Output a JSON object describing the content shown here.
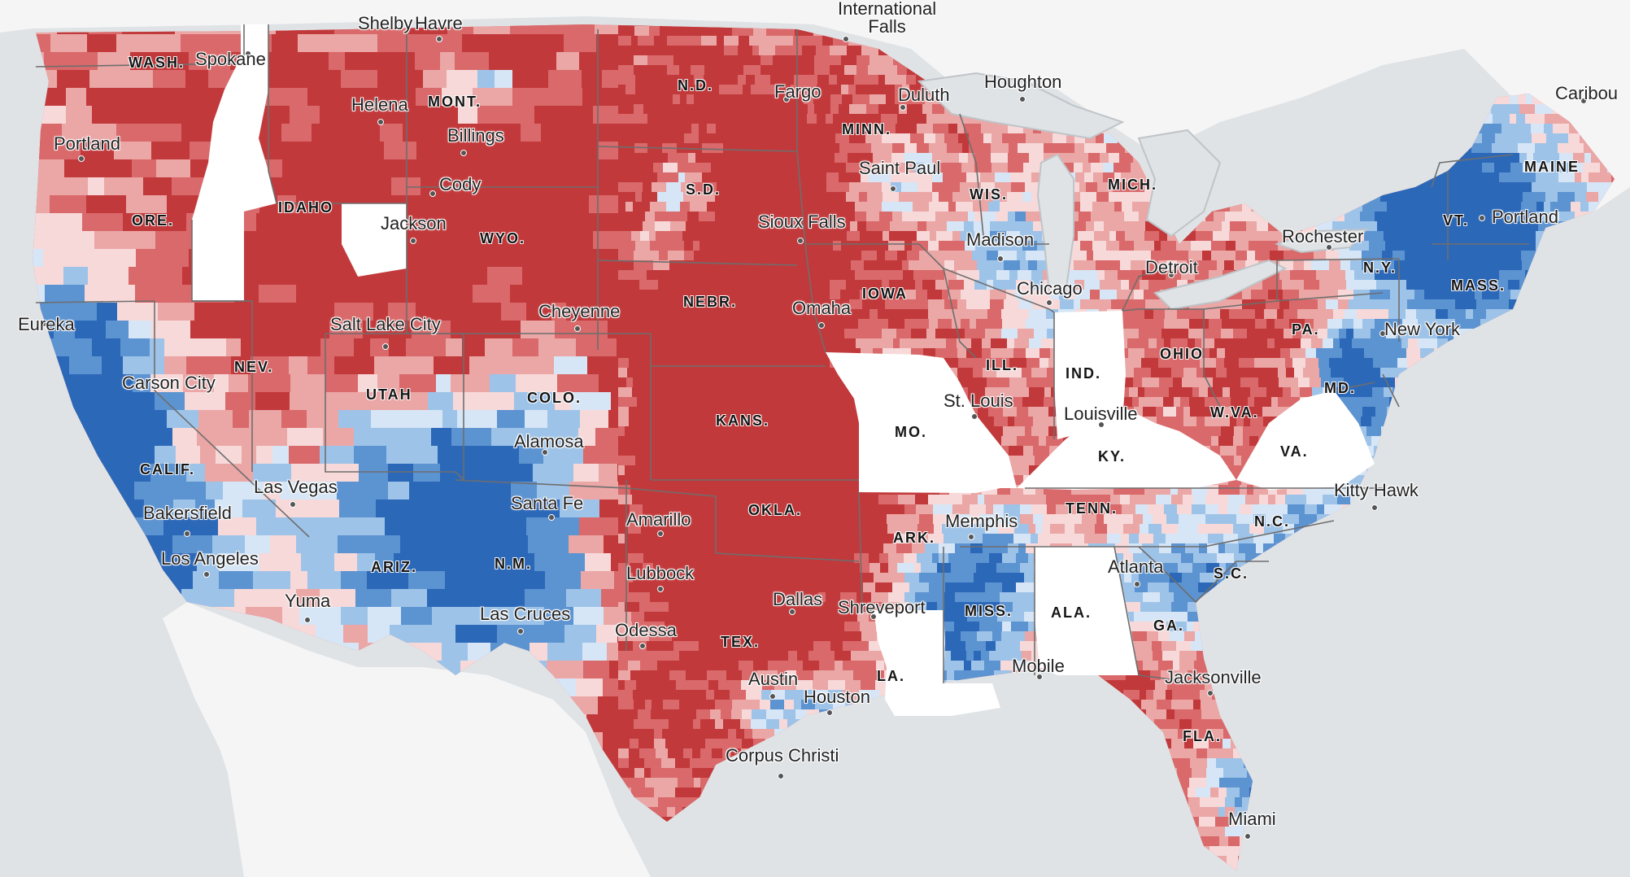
{
  "map": {
    "colors": {
      "water": "#dfe3e6",
      "land": "#f6f6f6",
      "no_data": "#ffffff",
      "strong_red": "#c2393b",
      "mid_red": "#d9696a",
      "light_red": "#eba6a6",
      "pale_red": "#f7d9d9",
      "pale_blue": "#d6e6f6",
      "light_blue": "#9ec3e8",
      "mid_blue": "#5c93d1",
      "strong_blue": "#2c68b8",
      "state_border": "#7a7a7a"
    },
    "states": [
      {
        "id": "wash",
        "label": "WASH."
      },
      {
        "id": "ore",
        "label": "ORE."
      },
      {
        "id": "calif",
        "label": "CALIF."
      },
      {
        "id": "idaho",
        "label": "IDAHO"
      },
      {
        "id": "nev",
        "label": "NEV."
      },
      {
        "id": "mont",
        "label": "MONT."
      },
      {
        "id": "wyo",
        "label": "WYO."
      },
      {
        "id": "utah",
        "label": "UTAH"
      },
      {
        "id": "colo",
        "label": "COLO."
      },
      {
        "id": "ariz",
        "label": "ARIZ."
      },
      {
        "id": "nm",
        "label": "N.M."
      },
      {
        "id": "nd",
        "label": "N.D."
      },
      {
        "id": "sd",
        "label": "S.D."
      },
      {
        "id": "nebr",
        "label": "NEBR."
      },
      {
        "id": "kans",
        "label": "KANS."
      },
      {
        "id": "okla",
        "label": "OKLA."
      },
      {
        "id": "tex",
        "label": "TEX."
      },
      {
        "id": "minn",
        "label": "MINN."
      },
      {
        "id": "iowa",
        "label": "IOWA"
      },
      {
        "id": "mo",
        "label": "MO."
      },
      {
        "id": "ark",
        "label": "ARK."
      },
      {
        "id": "la",
        "label": "LA."
      },
      {
        "id": "wis",
        "label": "WIS."
      },
      {
        "id": "ill",
        "label": "ILL."
      },
      {
        "id": "mich",
        "label": "MICH."
      },
      {
        "id": "ind",
        "label": "IND."
      },
      {
        "id": "ohio",
        "label": "OHIO"
      },
      {
        "id": "ky",
        "label": "KY."
      },
      {
        "id": "tenn",
        "label": "TENN."
      },
      {
        "id": "miss",
        "label": "MISS."
      },
      {
        "id": "ala",
        "label": "ALA."
      },
      {
        "id": "ga",
        "label": "GA."
      },
      {
        "id": "fla",
        "label": "FLA."
      },
      {
        "id": "sc",
        "label": "S.C."
      },
      {
        "id": "nc",
        "label": "N.C."
      },
      {
        "id": "va",
        "label": "VA."
      },
      {
        "id": "wva",
        "label": "W.VA."
      },
      {
        "id": "md",
        "label": "MD."
      },
      {
        "id": "pa",
        "label": "PA."
      },
      {
        "id": "ny",
        "label": "N.Y."
      },
      {
        "id": "vt",
        "label": "VT."
      },
      {
        "id": "mass",
        "label": "MASS."
      },
      {
        "id": "maine",
        "label": "MAINE"
      }
    ],
    "cities": [
      {
        "id": "shelby",
        "label": "Shelby"
      },
      {
        "id": "havre",
        "label": "Havre"
      },
      {
        "id": "international-falls",
        "label": "International\nFalls"
      },
      {
        "id": "spokane",
        "label": "Spokane"
      },
      {
        "id": "helena",
        "label": "Helena"
      },
      {
        "id": "billings",
        "label": "Billings"
      },
      {
        "id": "fargo",
        "label": "Fargo"
      },
      {
        "id": "duluth",
        "label": "Duluth"
      },
      {
        "id": "houghton",
        "label": "Houghton"
      },
      {
        "id": "caribou",
        "label": "Caribou"
      },
      {
        "id": "portland-or",
        "label": "Portland"
      },
      {
        "id": "cody",
        "label": "Cody"
      },
      {
        "id": "saint-paul",
        "label": "Saint Paul"
      },
      {
        "id": "jackson",
        "label": "Jackson"
      },
      {
        "id": "sioux-falls",
        "label": "Sioux Falls"
      },
      {
        "id": "madison",
        "label": "Madison"
      },
      {
        "id": "rochester",
        "label": "Rochester"
      },
      {
        "id": "portland-me",
        "label": "Portland"
      },
      {
        "id": "detroit",
        "label": "Detroit"
      },
      {
        "id": "chicago",
        "label": "Chicago"
      },
      {
        "id": "cheyenne",
        "label": "Cheyenne"
      },
      {
        "id": "omaha",
        "label": "Omaha"
      },
      {
        "id": "eureka",
        "label": "Eureka"
      },
      {
        "id": "salt-lake-city",
        "label": "Salt Lake City"
      },
      {
        "id": "new-york",
        "label": "New York"
      },
      {
        "id": "carson-city",
        "label": "Carson City"
      },
      {
        "id": "st-louis",
        "label": "St. Louis"
      },
      {
        "id": "louisville",
        "label": "Louisville"
      },
      {
        "id": "alamosa",
        "label": "Alamosa"
      },
      {
        "id": "las-vegas",
        "label": "Las Vegas"
      },
      {
        "id": "kitty-hawk",
        "label": "Kitty Hawk"
      },
      {
        "id": "santa-fe",
        "label": "Santa Fe"
      },
      {
        "id": "bakersfield",
        "label": "Bakersfield"
      },
      {
        "id": "amarillo",
        "label": "Amarillo"
      },
      {
        "id": "memphis",
        "label": "Memphis"
      },
      {
        "id": "los-angeles",
        "label": "Los Angeles"
      },
      {
        "id": "atlanta",
        "label": "Atlanta"
      },
      {
        "id": "lubbock",
        "label": "Lubbock"
      },
      {
        "id": "yuma",
        "label": "Yuma"
      },
      {
        "id": "dallas",
        "label": "Dallas"
      },
      {
        "id": "shreveport",
        "label": "Shreveport"
      },
      {
        "id": "las-cruces",
        "label": "Las Cruces"
      },
      {
        "id": "odessa",
        "label": "Odessa"
      },
      {
        "id": "mobile",
        "label": "Mobile"
      },
      {
        "id": "austin",
        "label": "Austin"
      },
      {
        "id": "jacksonville",
        "label": "Jacksonville"
      },
      {
        "id": "houston",
        "label": "Houston"
      },
      {
        "id": "corpus-christi",
        "label": "Corpus Christi"
      },
      {
        "id": "miami",
        "label": "Miami"
      }
    ]
  }
}
